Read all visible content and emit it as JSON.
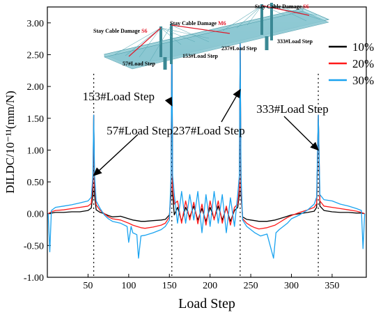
{
  "chart_data": {
    "type": "line",
    "xlabel": "Load Step",
    "ylabel": "DILDC/10⁻¹¹(mm/N)",
    "xlim": [
      0,
      392
    ],
    "ylim": [
      -1.0,
      3.25
    ],
    "x_ticks": [
      50,
      100,
      150,
      200,
      250,
      300,
      350
    ],
    "y_ticks": [
      -1.0,
      -0.5,
      0.0,
      0.5,
      1.0,
      1.5,
      2.0,
      2.5,
      3.0
    ],
    "y_tick_labels": [
      "-1.00",
      "-0.50",
      "0.00",
      "0.50",
      "1.00",
      "1.50",
      "2.00",
      "2.50",
      "3.00"
    ],
    "grid": false,
    "legend_position": "top-right",
    "series": [
      {
        "name": "10%",
        "color": "#000000",
        "x": [
          1,
          5,
          10,
          20,
          30,
          40,
          50,
          54,
          56,
          57,
          58,
          60,
          65,
          70,
          75,
          80,
          90,
          100,
          105,
          110,
          115,
          120,
          130,
          140,
          145,
          150,
          152,
          153,
          154,
          156,
          160,
          165,
          170,
          175,
          180,
          185,
          190,
          195,
          200,
          205,
          210,
          215,
          220,
          225,
          230,
          234,
          236,
          237,
          238,
          240,
          245,
          250,
          255,
          260,
          270,
          280,
          285,
          290,
          295,
          300,
          310,
          320,
          328,
          331,
          333,
          335,
          340,
          350,
          360,
          370,
          380,
          386,
          390
        ],
        "values": [
          0.0,
          0.01,
          0.02,
          0.02,
          0.03,
          0.03,
          0.05,
          0.09,
          0.3,
          1.55,
          0.3,
          0.06,
          0.02,
          0.0,
          -0.03,
          -0.05,
          -0.04,
          -0.08,
          -0.1,
          -0.11,
          -0.12,
          -0.12,
          -0.11,
          -0.1,
          -0.09,
          -0.02,
          0.3,
          2.9,
          0.3,
          -0.02,
          0.1,
          -0.12,
          0.1,
          -0.05,
          0.12,
          -0.1,
          0.08,
          -0.12,
          0.1,
          -0.08,
          0.12,
          -0.1,
          0.09,
          -0.12,
          0.05,
          0.1,
          0.3,
          2.7,
          0.3,
          -0.05,
          -0.09,
          -0.1,
          -0.11,
          -0.12,
          -0.12,
          -0.1,
          -0.08,
          -0.06,
          -0.04,
          -0.02,
          0.0,
          0.02,
          0.04,
          0.1,
          1.55,
          0.12,
          0.05,
          0.03,
          0.02,
          0.02,
          0.01,
          0.01,
          0.0
        ]
      },
      {
        "name": "20%",
        "color": "#ff1a1a",
        "x": [
          1,
          5,
          10,
          20,
          30,
          40,
          50,
          54,
          56,
          57,
          58,
          60,
          65,
          70,
          75,
          80,
          90,
          100,
          105,
          110,
          115,
          120,
          130,
          140,
          145,
          150,
          152,
          153,
          154,
          156,
          160,
          165,
          170,
          175,
          180,
          185,
          190,
          195,
          200,
          205,
          210,
          215,
          220,
          225,
          230,
          234,
          236,
          237,
          238,
          240,
          245,
          250,
          255,
          260,
          270,
          280,
          285,
          290,
          295,
          300,
          310,
          320,
          328,
          331,
          333,
          335,
          340,
          350,
          360,
          370,
          380,
          386,
          390
        ],
        "values": [
          0.0,
          0.03,
          0.05,
          0.06,
          0.08,
          0.1,
          0.12,
          0.16,
          0.45,
          1.55,
          0.45,
          0.14,
          0.05,
          0.0,
          -0.05,
          -0.08,
          -0.1,
          -0.15,
          -0.18,
          -0.2,
          -0.22,
          -0.23,
          -0.21,
          -0.18,
          -0.15,
          -0.05,
          0.4,
          2.9,
          0.4,
          0.15,
          0.2,
          -0.15,
          0.2,
          -0.1,
          0.18,
          -0.16,
          0.15,
          -0.18,
          0.2,
          -0.1,
          0.2,
          -0.15,
          0.12,
          -0.18,
          0.1,
          0.15,
          0.4,
          2.7,
          0.4,
          -0.08,
          -0.15,
          -0.19,
          -0.22,
          -0.24,
          -0.22,
          -0.18,
          -0.14,
          -0.1,
          -0.06,
          -0.03,
          0.02,
          0.06,
          0.1,
          0.16,
          1.55,
          0.2,
          0.12,
          0.1,
          0.08,
          0.06,
          0.04,
          0.02,
          0.0
        ]
      },
      {
        "name": "30%",
        "color": "#1aa3f0",
        "x": [
          1,
          3,
          5,
          10,
          20,
          30,
          40,
          50,
          54,
          56,
          57,
          58,
          60,
          65,
          70,
          75,
          80,
          90,
          98,
          100,
          103,
          105,
          110,
          112,
          115,
          120,
          130,
          140,
          145,
          150,
          152,
          153,
          154,
          156,
          160,
          165,
          170,
          175,
          180,
          185,
          190,
          195,
          200,
          205,
          210,
          215,
          220,
          225,
          230,
          234,
          236,
          237,
          238,
          240,
          245,
          250,
          255,
          262,
          270,
          278,
          281,
          285,
          290,
          295,
          300,
          310,
          320,
          328,
          331,
          333,
          335,
          340,
          350,
          360,
          370,
          380,
          386,
          388,
          390
        ],
        "values": [
          0.0,
          -0.6,
          0.05,
          0.1,
          0.12,
          0.14,
          0.17,
          0.2,
          0.26,
          0.6,
          1.55,
          0.6,
          0.2,
          0.08,
          -0.02,
          -0.08,
          -0.12,
          -0.15,
          -0.2,
          -0.45,
          -0.2,
          -0.3,
          -0.33,
          -0.7,
          -0.35,
          -0.34,
          -0.3,
          -0.25,
          -0.2,
          -0.1,
          0.6,
          2.85,
          0.6,
          0.3,
          -0.15,
          0.35,
          -0.15,
          0.3,
          -0.1,
          0.35,
          -0.3,
          0.3,
          -0.2,
          0.35,
          -0.15,
          0.3,
          -0.3,
          0.25,
          -0.2,
          0.3,
          0.6,
          2.7,
          0.6,
          -0.1,
          -0.2,
          -0.25,
          -0.3,
          -0.35,
          -0.32,
          -0.7,
          -0.3,
          -0.25,
          -0.2,
          -0.15,
          -0.08,
          -0.02,
          0.06,
          0.15,
          0.26,
          1.55,
          0.3,
          0.22,
          0.2,
          0.15,
          0.12,
          0.08,
          0.05,
          -0.55,
          0.0
        ]
      }
    ],
    "load_step_markers": [
      57,
      153,
      237,
      333
    ],
    "annotations": [
      {
        "text": "57#Load Step",
        "target_x": 57,
        "target_y": 0.6
      },
      {
        "text": "153#Load Step",
        "target_x": 153,
        "target_y": 1.7
      },
      {
        "text": "237#Load Step",
        "target_x": 237,
        "target_y": 1.95
      },
      {
        "text": "333#Load Step",
        "target_x": 333,
        "target_y": 1.0
      }
    ],
    "inset": {
      "labels": [
        {
          "text": "Stay Cable Damage",
          "code": "S6",
          "code_color": "#e0192a"
        },
        {
          "text": "Stay Cable Damage",
          "code": "S6",
          "code_color": "#e0192a"
        },
        {
          "text": "Stay Cable Damage",
          "code": "M6",
          "code_color": "#e0192a"
        },
        {
          "text": "57#Load Step",
          "code": "",
          "code_color": ""
        },
        {
          "text": "153#Load Step",
          "code": "",
          "code_color": ""
        },
        {
          "text": "237#Load Step",
          "code": "",
          "code_color": ""
        },
        {
          "text": "333#Load Step",
          "code": "",
          "code_color": ""
        }
      ]
    }
  }
}
